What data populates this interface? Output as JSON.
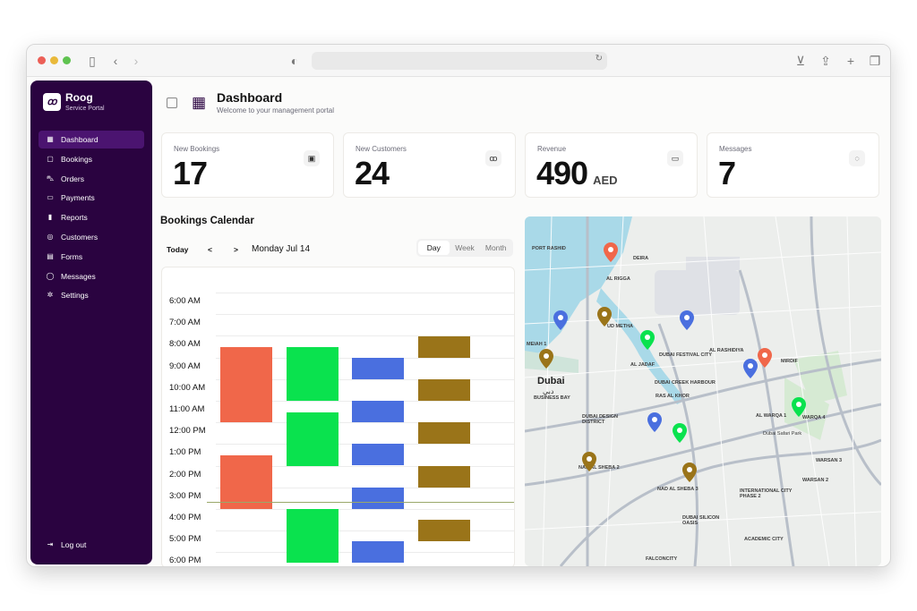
{
  "brand": {
    "name": "Roog",
    "subtitle": "Service Portal",
    "logo_glyph": "ꝏ"
  },
  "nav": {
    "items": [
      {
        "label": "Dashboard",
        "icon": "grid-icon",
        "glyph": "▦"
      },
      {
        "label": "Bookings",
        "icon": "calendar-icon",
        "glyph": "▢"
      },
      {
        "label": "Orders",
        "icon": "cart-icon",
        "glyph": "⛍"
      },
      {
        "label": "Payments",
        "icon": "card-icon",
        "glyph": "▭"
      },
      {
        "label": "Reports",
        "icon": "bar-chart-icon",
        "glyph": "▮"
      },
      {
        "label": "Customers",
        "icon": "users-icon",
        "glyph": "◎"
      },
      {
        "label": "Forms",
        "icon": "document-icon",
        "glyph": "▤"
      },
      {
        "label": "Messages",
        "icon": "chat-icon",
        "glyph": "◯"
      },
      {
        "label": "Settings",
        "icon": "gear-icon",
        "glyph": "✲"
      }
    ],
    "active": "Dashboard",
    "logout": "Log out"
  },
  "header": {
    "title": "Dashboard",
    "subtitle": "Welcome to your management portal"
  },
  "stats": [
    {
      "label": "New Bookings",
      "value": "17",
      "unit": "",
      "icon": "calendar-check-icon",
      "glyph": "▣"
    },
    {
      "label": "New Customers",
      "value": "24",
      "unit": "",
      "icon": "users-icon",
      "glyph": "ꝏ"
    },
    {
      "label": "Revenue",
      "value": "490",
      "unit": "AED",
      "icon": "credit-card-icon",
      "glyph": "▭"
    },
    {
      "label": "Messages",
      "value": "7",
      "unit": "",
      "icon": "chat-icon",
      "glyph": "◌"
    }
  ],
  "calendar": {
    "title": "Bookings Calendar",
    "today": "Today",
    "prev": "<",
    "next": ">",
    "date": "Monday Jul 14",
    "views": [
      "Day",
      "Week",
      "Month"
    ],
    "active_view": "Day",
    "times": [
      "6:00 AM",
      "7:00 AM",
      "8:00 AM",
      "9:00 AM",
      "10:00 AM",
      "11:00 AM",
      "12:00 PM",
      "1:00 PM",
      "2:00 PM",
      "3:00 PM",
      "4:00 PM",
      "5:00 PM",
      "6:00 PM"
    ],
    "colors": {
      "orange": "#f0674a",
      "green": "#0ae24e",
      "blue": "#4a6fdf",
      "olive": "#9a7419"
    }
  },
  "map": {
    "city": "Dubai",
    "city_ar": "دبي",
    "labels": [
      "PORT RASHID",
      "DEIRA",
      "AL RIGGA",
      "UD METHA",
      "AL JADAF",
      "DUBAI CREEK HARBOUR",
      "RAS AL KHOR",
      "DUBAI FESTIVAL CITY",
      "AL RASHIDIYA",
      "MIRDIF",
      "AL WARQA 1",
      "WARQA 4",
      "Dubai Safari Park",
      "NAD AL SHEBA 3",
      "NAD AL SHEBA 2",
      "INTERNATIONAL CITY PHASE 2",
      "WARSAN 2",
      "DUBAI DESIGN DISTRICT",
      "DUBAI SILICON OASIS",
      "ACADEMIC CITY",
      "FALCONCITY",
      "MEIAH 1",
      "BUSINESS BAY",
      "WARSAN 3"
    ]
  }
}
